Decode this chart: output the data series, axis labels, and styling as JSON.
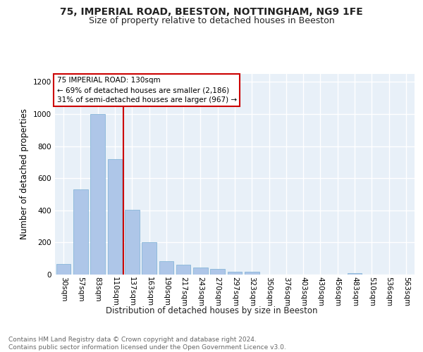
{
  "title1": "75, IMPERIAL ROAD, BEESTON, NOTTINGHAM, NG9 1FE",
  "title2": "Size of property relative to detached houses in Beeston",
  "xlabel": "Distribution of detached houses by size in Beeston",
  "ylabel": "Number of detached properties",
  "footer": "Contains HM Land Registry data © Crown copyright and database right 2024.\nContains public sector information licensed under the Open Government Licence v3.0.",
  "categories": [
    "30sqm",
    "57sqm",
    "83sqm",
    "110sqm",
    "137sqm",
    "163sqm",
    "190sqm",
    "217sqm",
    "243sqm",
    "270sqm",
    "297sqm",
    "323sqm",
    "350sqm",
    "376sqm",
    "403sqm",
    "430sqm",
    "456sqm",
    "483sqm",
    "510sqm",
    "536sqm",
    "563sqm"
  ],
  "values": [
    65,
    530,
    1000,
    720,
    405,
    200,
    85,
    60,
    45,
    33,
    17,
    18,
    0,
    0,
    0,
    0,
    0,
    10,
    0,
    0,
    0
  ],
  "bar_color": "#aec6e8",
  "bar_edge_color": "#7aafd4",
  "vline_color": "#cc0000",
  "annotation_text": "75 IMPERIAL ROAD: 130sqm\n← 69% of detached houses are smaller (2,186)\n31% of semi-detached houses are larger (967) →",
  "annotation_box_color": "#cc0000",
  "ylim": [
    0,
    1250
  ],
  "yticks": [
    0,
    200,
    400,
    600,
    800,
    1000,
    1200
  ],
  "background_color": "#e8f0f8",
  "grid_color": "#ffffff",
  "title1_fontsize": 10,
  "title2_fontsize": 9,
  "xlabel_fontsize": 8.5,
  "ylabel_fontsize": 8.5,
  "tick_fontsize": 7.5,
  "footer_fontsize": 6.5,
  "annotation_fontsize": 7.5
}
